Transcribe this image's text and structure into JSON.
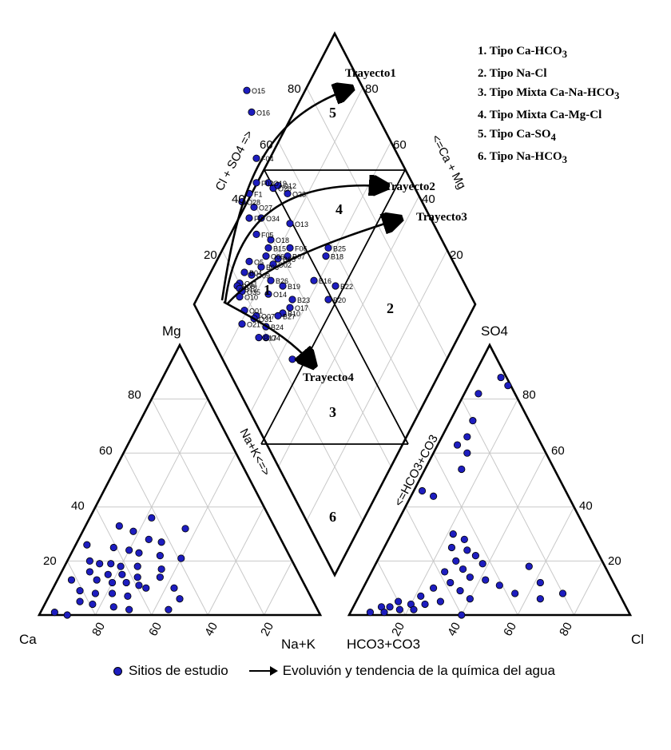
{
  "types": [
    {
      "number": "1.",
      "label": "Tipo Ca-HCO",
      "sub": "3"
    },
    {
      "number": "2.",
      "label": "Tipo Na-Cl",
      "sub": ""
    },
    {
      "number": "3.",
      "label": "Tipo Mixta Ca-Na-HCO",
      "sub": "3"
    },
    {
      "number": "4.",
      "label": "Tipo Mixta Ca-Mg-Cl",
      "sub": ""
    },
    {
      "number": "5.",
      "label": "Tipo Ca-SO",
      "sub": "4"
    },
    {
      "number": "6.",
      "label": "Tipo Na-HCO",
      "sub": "3"
    }
  ],
  "axes": {
    "mg": "Mg",
    "ca": "Ca",
    "nak": "Na+K",
    "so4": "SO4",
    "cl": "Cl",
    "hco3_bottom": "HCO3+CO3",
    "cl_so4": "Cl + SO4 =>",
    "ca_mg": "<=Ca + Mg",
    "nak_diag": "Na+K<=>",
    "hco3_diag": "<=HCO3+CO3"
  },
  "ticks": {
    "left_vertical": [
      "80",
      "60",
      "40",
      "20"
    ],
    "left_bottom": [
      "80",
      "60",
      "40",
      "20"
    ],
    "right_vertical": [
      "80",
      "60",
      "40",
      "20"
    ],
    "right_bottom": [
      "20",
      "40",
      "60",
      "80"
    ],
    "diamond_left": [
      "80",
      "60",
      "40",
      "20"
    ],
    "diamond_right": [
      "80",
      "60",
      "40",
      "20"
    ]
  },
  "zones": [
    "1",
    "2",
    "3",
    "4",
    "5",
    "6"
  ],
  "trajectories": [
    "Trayecto1",
    "Trayecto2",
    "Trayecto3",
    "Trayecto4"
  ],
  "legend": {
    "sites": "Sitios de estudio",
    "evolution": "Evoluvión y tendencia de la química del agua"
  },
  "colors": {
    "point": "#1d1dbf",
    "grid": "#c8c8c8",
    "frame": "#000000"
  },
  "sample_labels": [
    "O15",
    "O16",
    "F04",
    "F02",
    "F1",
    "O19",
    "O20",
    "O12",
    "O28",
    "O23",
    "O27",
    "F0",
    "O34",
    "O13",
    "B25",
    "B18",
    "F05",
    "O18",
    "F06",
    "B15",
    "O06",
    "B07",
    "O02",
    "B05",
    "O5",
    "B06",
    "B16",
    "B22",
    "B04",
    "O09",
    "B26",
    "B19",
    "B20",
    "O11",
    "B08",
    "B12",
    "O35",
    "B23",
    "O17",
    "O14",
    "B10",
    "O10",
    "B27",
    "O01",
    "O07",
    "O21",
    "O31",
    "B24",
    "O4",
    "B17",
    "O03"
  ],
  "sample_points": [
    {
      "label": "O15",
      "u": 0.08,
      "v": 0.77
    },
    {
      "label": "O16",
      "u": 0.1,
      "v": 0.69
    },
    {
      "label": "F04",
      "u": 0.12,
      "v": 0.52
    },
    {
      "label": "F02",
      "u": 0.12,
      "v": 0.43
    },
    {
      "label": "F1",
      "u": 0.09,
      "v": 0.39
    },
    {
      "label": "O19",
      "u": 0.17,
      "v": 0.43
    },
    {
      "label": "O20",
      "u": 0.19,
      "v": 0.41
    },
    {
      "label": "O12",
      "u": 0.21,
      "v": 0.42
    },
    {
      "label": "O28",
      "u": 0.06,
      "v": 0.36
    },
    {
      "label": "O23",
      "u": 0.25,
      "v": 0.39
    },
    {
      "label": "O27",
      "u": 0.11,
      "v": 0.34
    },
    {
      "label": "F0",
      "u": 0.09,
      "v": 0.3
    },
    {
      "label": "O34",
      "u": 0.14,
      "v": 0.3
    },
    {
      "label": "O13",
      "u": 0.26,
      "v": 0.28
    },
    {
      "label": "B25",
      "u": 0.42,
      "v": 0.19
    },
    {
      "label": "B18",
      "u": 0.41,
      "v": 0.16
    },
    {
      "label": "F05",
      "u": 0.12,
      "v": 0.24
    },
    {
      "label": "O18",
      "u": 0.18,
      "v": 0.22
    },
    {
      "label": "F06",
      "u": 0.26,
      "v": 0.19
    },
    {
      "label": "B15",
      "u": 0.17,
      "v": 0.19
    },
    {
      "label": "O06",
      "u": 0.16,
      "v": 0.16
    },
    {
      "label": "B07",
      "u": 0.25,
      "v": 0.16
    },
    {
      "label": "O02",
      "u": 0.19,
      "v": 0.13
    },
    {
      "label": "B05",
      "u": 0.21,
      "v": 0.15
    },
    {
      "label": "O5",
      "u": 0.09,
      "v": 0.14
    },
    {
      "label": "B06",
      "u": 0.14,
      "v": 0.12
    },
    {
      "label": "B16",
      "u": 0.36,
      "v": 0.07
    },
    {
      "label": "B22",
      "u": 0.45,
      "v": 0.05
    },
    {
      "label": "B04",
      "u": 0.07,
      "v": 0.1
    },
    {
      "label": "O09",
      "u": 0.1,
      "v": 0.09
    },
    {
      "label": "B26",
      "u": 0.18,
      "v": 0.07
    },
    {
      "label": "B19",
      "u": 0.23,
      "v": 0.05
    },
    {
      "label": "B20",
      "u": 0.42,
      "v": 0.0
    },
    {
      "label": "O11",
      "u": 0.05,
      "v": 0.06
    },
    {
      "label": "B08",
      "u": 0.04,
      "v": 0.05
    },
    {
      "label": "B12",
      "u": 0.05,
      "v": 0.04
    },
    {
      "label": "O35",
      "u": 0.06,
      "v": 0.03
    },
    {
      "label": "B23",
      "u": 0.27,
      "v": 0.0
    },
    {
      "label": "O17",
      "u": 0.26,
      "v": -0.03
    },
    {
      "label": "O14",
      "u": 0.17,
      "v": 0.02
    },
    {
      "label": "B10",
      "u": 0.23,
      "v": -0.05
    },
    {
      "label": "O10",
      "u": 0.05,
      "v": 0.01
    },
    {
      "label": "B27",
      "u": 0.21,
      "v": -0.06
    },
    {
      "label": "O01",
      "u": 0.07,
      "v": -0.04
    },
    {
      "label": "O07",
      "u": 0.12,
      "v": -0.06
    },
    {
      "label": "O21",
      "u": 0.06,
      "v": -0.09
    },
    {
      "label": "O31",
      "u": 0.11,
      "v": -0.07
    },
    {
      "label": "B24",
      "u": 0.16,
      "v": -0.1
    },
    {
      "label": "O4",
      "u": 0.16,
      "v": -0.14
    },
    {
      "label": "B17",
      "u": 0.13,
      "v": -0.14
    },
    {
      "label": "O03",
      "u": 0.27,
      "v": -0.22
    }
  ],
  "cation_points": [
    {
      "mg": 0.33,
      "nak": 0.12
    },
    {
      "mg": 0.31,
      "nak": 0.18
    },
    {
      "mg": 0.36,
      "nak": 0.22
    },
    {
      "mg": 0.32,
      "nak": 0.36
    },
    {
      "mg": 0.28,
      "nak": 0.25
    },
    {
      "mg": 0.27,
      "nak": 0.3
    },
    {
      "mg": 0.25,
      "nak": 0.14
    },
    {
      "mg": 0.24,
      "nak": 0.2
    },
    {
      "mg": 0.23,
      "nak": 0.24
    },
    {
      "mg": 0.22,
      "nak": 0.32
    },
    {
      "mg": 0.2,
      "nak": 0.08
    },
    {
      "mg": 0.19,
      "nak": 0.12
    },
    {
      "mg": 0.19,
      "nak": 0.16
    },
    {
      "mg": 0.18,
      "nak": 0.2
    },
    {
      "mg": 0.18,
      "nak": 0.26
    },
    {
      "mg": 0.17,
      "nak": 0.35
    },
    {
      "mg": 0.16,
      "nak": 0.1
    },
    {
      "mg": 0.15,
      "nak": 0.17
    },
    {
      "mg": 0.15,
      "nak": 0.22
    },
    {
      "mg": 0.14,
      "nak": 0.28
    },
    {
      "mg": 0.13,
      "nak": 0.05
    },
    {
      "mg": 0.13,
      "nak": 0.14
    },
    {
      "mg": 0.12,
      "nak": 0.2
    },
    {
      "mg": 0.12,
      "nak": 0.25
    },
    {
      "mg": 0.11,
      "nak": 0.3
    },
    {
      "mg": 0.1,
      "nak": 0.43
    },
    {
      "mg": 0.09,
      "nak": 0.1
    },
    {
      "mg": 0.08,
      "nak": 0.16
    },
    {
      "mg": 0.08,
      "nak": 0.22
    },
    {
      "mg": 0.07,
      "nak": 0.28
    },
    {
      "mg": 0.06,
      "nak": 0.47
    },
    {
      "mg": 0.05,
      "nak": 0.12
    },
    {
      "mg": 0.04,
      "nak": 0.17
    },
    {
      "mg": 0.03,
      "nak": 0.25
    },
    {
      "mg": 0.02,
      "nak": 0.31
    },
    {
      "mg": 0.02,
      "nak": 0.45
    },
    {
      "mg": 0.01,
      "nak": 0.05
    },
    {
      "mg": 0.0,
      "nak": 0.1
    },
    {
      "mg": 0.26,
      "nak": 0.04
    },
    {
      "mg": 0.21,
      "nak": 0.4
    },
    {
      "mg": 0.14,
      "nak": 0.36
    },
    {
      "mg": 0.1,
      "nak": 0.33
    }
  ],
  "anion_points": [
    {
      "so4": 0.88,
      "cl": 0.1
    },
    {
      "so4": 0.85,
      "cl": 0.14
    },
    {
      "so4": 0.82,
      "cl": 0.05
    },
    {
      "so4": 0.72,
      "cl": 0.08
    },
    {
      "so4": 0.66,
      "cl": 0.09
    },
    {
      "so4": 0.63,
      "cl": 0.07
    },
    {
      "so4": 0.6,
      "cl": 0.12
    },
    {
      "so4": 0.54,
      "cl": 0.13
    },
    {
      "so4": 0.46,
      "cl": 0.03
    },
    {
      "so4": 0.44,
      "cl": 0.08
    },
    {
      "so4": 0.3,
      "cl": 0.22
    },
    {
      "so4": 0.28,
      "cl": 0.27
    },
    {
      "so4": 0.25,
      "cl": 0.24
    },
    {
      "so4": 0.24,
      "cl": 0.3
    },
    {
      "so4": 0.22,
      "cl": 0.34
    },
    {
      "so4": 0.2,
      "cl": 0.28
    },
    {
      "so4": 0.19,
      "cl": 0.38
    },
    {
      "so4": 0.17,
      "cl": 0.32
    },
    {
      "so4": 0.16,
      "cl": 0.26
    },
    {
      "so4": 0.14,
      "cl": 0.36
    },
    {
      "so4": 0.13,
      "cl": 0.42
    },
    {
      "so4": 0.12,
      "cl": 0.3
    },
    {
      "so4": 0.11,
      "cl": 0.48
    },
    {
      "so4": 0.1,
      "cl": 0.25
    },
    {
      "so4": 0.09,
      "cl": 0.35
    },
    {
      "so4": 0.08,
      "cl": 0.55
    },
    {
      "so4": 0.07,
      "cl": 0.22
    },
    {
      "so4": 0.06,
      "cl": 0.4
    },
    {
      "so4": 0.05,
      "cl": 0.3
    },
    {
      "so4": 0.05,
      "cl": 0.15
    },
    {
      "so4": 0.04,
      "cl": 0.2
    },
    {
      "so4": 0.04,
      "cl": 0.25
    },
    {
      "so4": 0.03,
      "cl": 0.1
    },
    {
      "so4": 0.03,
      "cl": 0.13
    },
    {
      "so4": 0.02,
      "cl": 0.17
    },
    {
      "so4": 0.02,
      "cl": 0.22
    },
    {
      "so4": 0.01,
      "cl": 0.07
    },
    {
      "so4": 0.01,
      "cl": 0.12
    },
    {
      "so4": 0.0,
      "cl": 0.4
    },
    {
      "so4": 0.18,
      "cl": 0.55
    },
    {
      "so4": 0.12,
      "cl": 0.62
    },
    {
      "so4": 0.06,
      "cl": 0.65
    },
    {
      "so4": 0.08,
      "cl": 0.72
    }
  ]
}
